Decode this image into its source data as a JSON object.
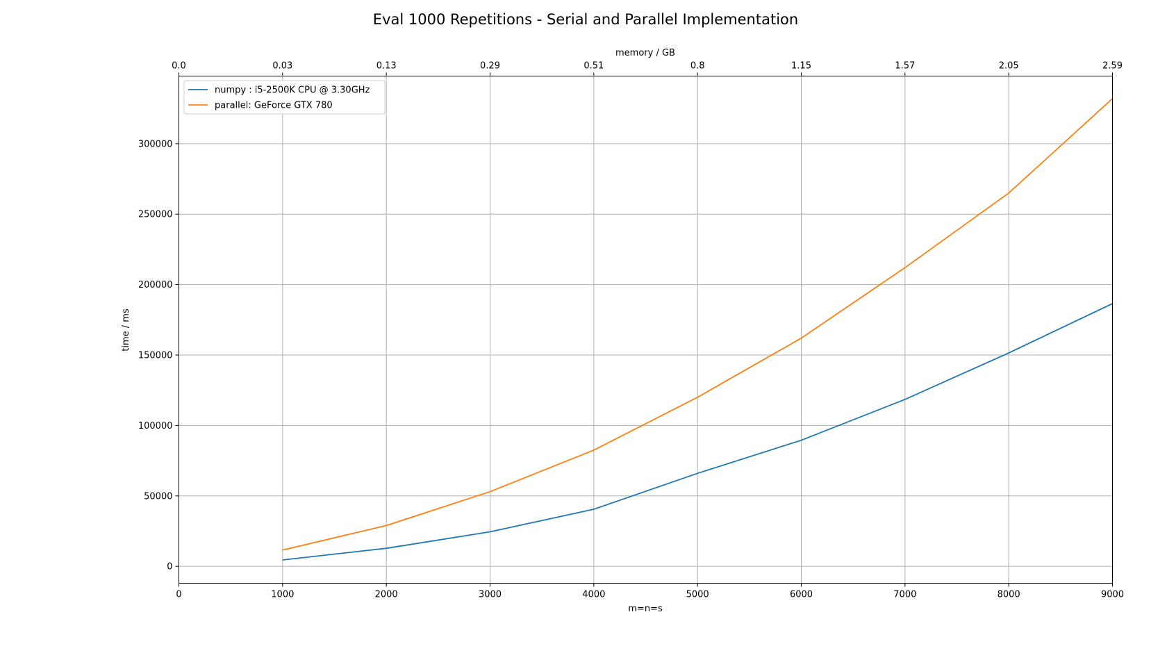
{
  "chart_data": {
    "type": "line",
    "title": "Eval 1000 Repetitions - Serial and Parallel Implementation",
    "xlabel": "m=n=s",
    "ylabel": "time / ms",
    "top_xlabel": "memory / GB",
    "xlim": [
      0,
      9000
    ],
    "ylim": [
      -12000,
      348000
    ],
    "xticks": [
      0,
      1000,
      2000,
      3000,
      4000,
      5000,
      6000,
      7000,
      8000,
      9000
    ],
    "xtick_labels": [
      "0",
      "1000",
      "2000",
      "3000",
      "4000",
      "5000",
      "6000",
      "7000",
      "8000",
      "9000"
    ],
    "yticks": [
      0,
      50000,
      100000,
      150000,
      200000,
      250000,
      300000
    ],
    "ytick_labels": [
      "0",
      "50000",
      "100000",
      "150000",
      "200000",
      "250000",
      "300000"
    ],
    "top_xtick_labels": [
      "0.0",
      "0.03",
      "0.13",
      "0.29",
      "0.51",
      "0.8",
      "1.15",
      "1.57",
      "2.05",
      "2.59"
    ],
    "grid": true,
    "legend_position": "top-left",
    "x": [
      1000,
      2000,
      3000,
      4000,
      5000,
      6000,
      7000,
      8000,
      9000
    ],
    "series": [
      {
        "name": "numpy : i5-2500K CPU @ 3.30GHz",
        "color": "#1f77b4",
        "values": [
          4500,
          12800,
          24500,
          40500,
          66000,
          89500,
          118500,
          151500,
          186500
        ]
      },
      {
        "name": "parallel: GeForce GTX 780",
        "color": "#ff7f0e",
        "values": [
          11500,
          29000,
          53000,
          82500,
          120000,
          162000,
          212000,
          265000,
          332000
        ]
      }
    ]
  }
}
